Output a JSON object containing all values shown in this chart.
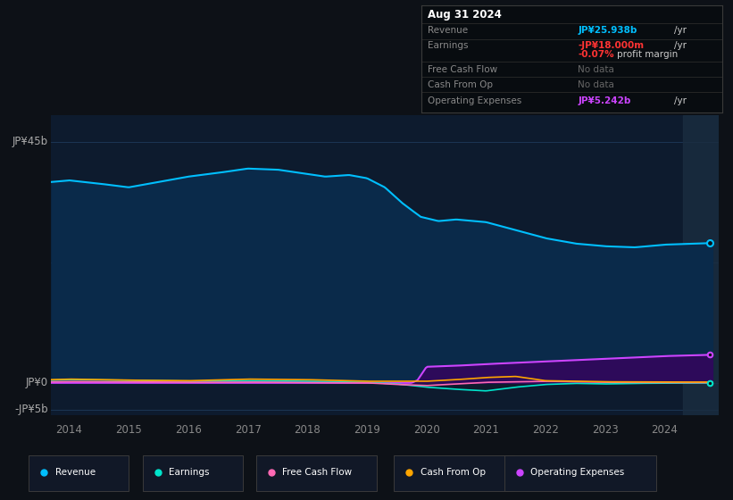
{
  "background_color": "#0d1117",
  "plot_bg_color": "#0d1b2e",
  "y_label_top": "JP¥45b",
  "y_label_zero": "JP¥0",
  "y_label_neg": "-JP¥5b",
  "revenue_color": "#00bfff",
  "earnings_color": "#00e5cc",
  "fcf_color": "#ff69b4",
  "cfo_color": "#ffa500",
  "opex_color": "#cc44ff",
  "opex_fill_color": "#2d0a5a",
  "revenue_fill_color": "#0a2a4a",
  "info_box_bg": "#080c10",
  "legend_bg": "#111827"
}
